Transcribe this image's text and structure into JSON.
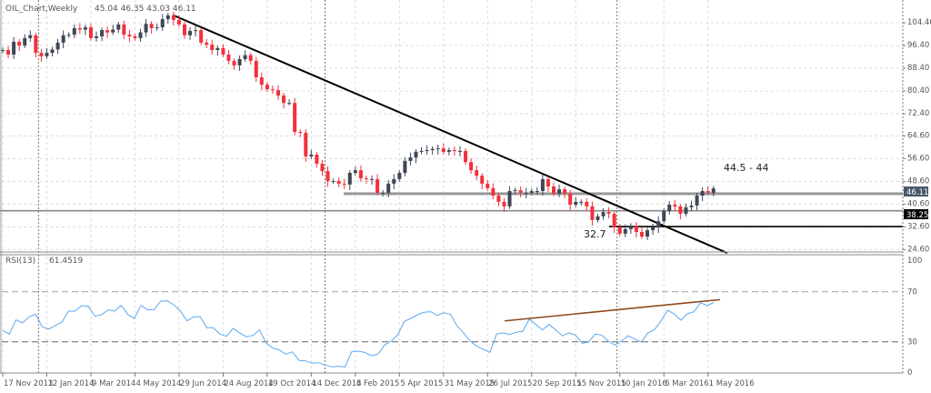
{
  "header": {
    "symbol": "OIL_Chart,Weekly",
    "ohlc": "45.04 46.35 43.03 46.11"
  },
  "rsi_header": {
    "label": "RSI(13)",
    "value": "61.4519"
  },
  "colors": {
    "bull": "#3e4756",
    "bear": "#f2303d",
    "rsi": "#5aa8f0",
    "trendline": "#000000",
    "rsi_trendline": "#8b4a1c",
    "grid": "#dcdcdc",
    "axis_text": "#555555"
  },
  "annotations": {
    "resistance": "44.5 - 44",
    "support": "32.7"
  },
  "chart_data": [
    {
      "type": "candlestick",
      "title": "",
      "timeframe": "weekly",
      "x_tick_labels": [
        "17 Nov 2013",
        "12 Jan 2014",
        "9 Mar 2014",
        "4 May 2014",
        "29 Jun 2014",
        "24 Aug 2014",
        "19 Oct 2014",
        "14 Dec 2014",
        "8 Feb 2015",
        "5 Apr 2015",
        "31 May 2015",
        "26 Jul 2015",
        "20 Sep 2015",
        "15 Nov 2015",
        "10 Jan 2016",
        "6 Mar 2016",
        "1 May 2016"
      ],
      "y_tick_labels": [
        "104.40",
        "96.40",
        "88.40",
        "80.40",
        "72.40",
        "64.60",
        "56.60",
        "48.60",
        "40.60",
        "32.60",
        "24.60"
      ],
      "ylim": [
        24.4,
        112
      ],
      "grid": true,
      "current_price_label": "46.11",
      "level_label": "38.25",
      "closes": [
        94.8,
        93.2,
        97.7,
        96.4,
        99,
        100,
        93.8,
        92.6,
        93.8,
        95,
        97.4,
        100,
        100.2,
        102.5,
        102,
        102.8,
        99,
        99.6,
        101.8,
        101,
        102,
        103.8,
        100.2,
        99.6,
        99,
        101,
        104,
        102.5,
        102.8,
        105.7,
        107,
        105.4,
        103.8,
        100,
        101.5,
        101.8,
        97.4,
        96.7,
        94.8,
        95.5,
        93.2,
        91,
        89.4,
        91.6,
        93,
        91,
        85.2,
        82.6,
        81,
        80.7,
        78.8,
        76.2,
        76.2,
        66,
        65.7,
        57.4,
        58,
        54.8,
        52.2,
        48.7,
        48.7,
        47.8,
        47.5,
        51.6,
        52.5,
        49.7,
        49.4,
        49.4,
        44.6,
        44.6,
        47.8,
        49.4,
        51.6,
        55.8,
        57,
        59,
        59.3,
        59.6,
        60,
        60.2,
        59,
        59.6,
        59.3,
        59.3,
        55.4,
        52.5,
        50.6,
        47.8,
        46.2,
        43.6,
        41.4,
        39.8,
        45.2,
        45.5,
        44.6,
        44.6,
        45.2,
        45.2,
        49.4,
        46.8,
        44.3,
        45.8,
        44.3,
        40.4,
        41.4,
        41.4,
        39.8,
        35,
        36.3,
        37.8,
        37.2,
        32.4,
        30.2,
        31.8,
        33,
        30.8,
        29.2,
        31.4,
        32.4,
        34.6,
        38.2,
        40.4,
        39.8,
        37.2,
        39.5,
        40.1,
        43.6,
        45.2,
        44.6,
        46.11
      ],
      "first_open": 94.5,
      "horizontal_levels": [
        44.5,
        44.0,
        38.25,
        32.7
      ],
      "trendline": {
        "from": {
          "week": 31,
          "price": 107.0
        },
        "to": {
          "week": 131.5,
          "price": 23.4
        }
      }
    },
    {
      "type": "line",
      "title": "RSI(13)",
      "ylim": [
        0,
        100
      ],
      "y_tick_labels": [
        "100",
        "70",
        "30",
        "0"
      ],
      "levels": [
        70,
        30
      ],
      "values": [
        39.0,
        36.1,
        47.5,
        45.1,
        49.9,
        52.1,
        41.9,
        40.2,
        43.1,
        45.8,
        54.5,
        54.5,
        58.9,
        58.4,
        50.4,
        51.6,
        55.5,
        54.5,
        59.1,
        51.8,
        48.7,
        59.1,
        55.5,
        55.7,
        62.5,
        62.7,
        59.6,
        54.5,
        46.7,
        49.9,
        49.9,
        41.2,
        41.2,
        36.1,
        34.4,
        40.7,
        37.1,
        34.1,
        35.1,
        39.5,
        29.3,
        24.9,
        23.5,
        20.1,
        22,
        15.2,
        14.7,
        12.8,
        13.3,
        11.4,
        9.9,
        10.4,
        9.9,
        22,
        22.5,
        21.5,
        18.9,
        20.1,
        27.4,
        30.5,
        35.4,
        46.3,
        48.7,
        51.6,
        53.6,
        54.1,
        51.1,
        53.1,
        52.1,
        42.7,
        37.1,
        30.5,
        26.4,
        24,
        21.5,
        36.1,
        37.1,
        35.9,
        37.6,
        38.5,
        48.2,
        43.8,
        39.5,
        43.8,
        39.5,
        34.7,
        37.1,
        35.4,
        28.8,
        29.8,
        36.1,
        35.4,
        30.5,
        27.4,
        30.5,
        34.9,
        32.2,
        29.8,
        37.1,
        39.5,
        46.7,
        55.2,
        52.3,
        47.2,
        52.3,
        54.1,
        61.3,
        58.9,
        61.45
      ],
      "trendline": {
        "from_value": 46.7,
        "to_value": 63.7
      }
    }
  ]
}
